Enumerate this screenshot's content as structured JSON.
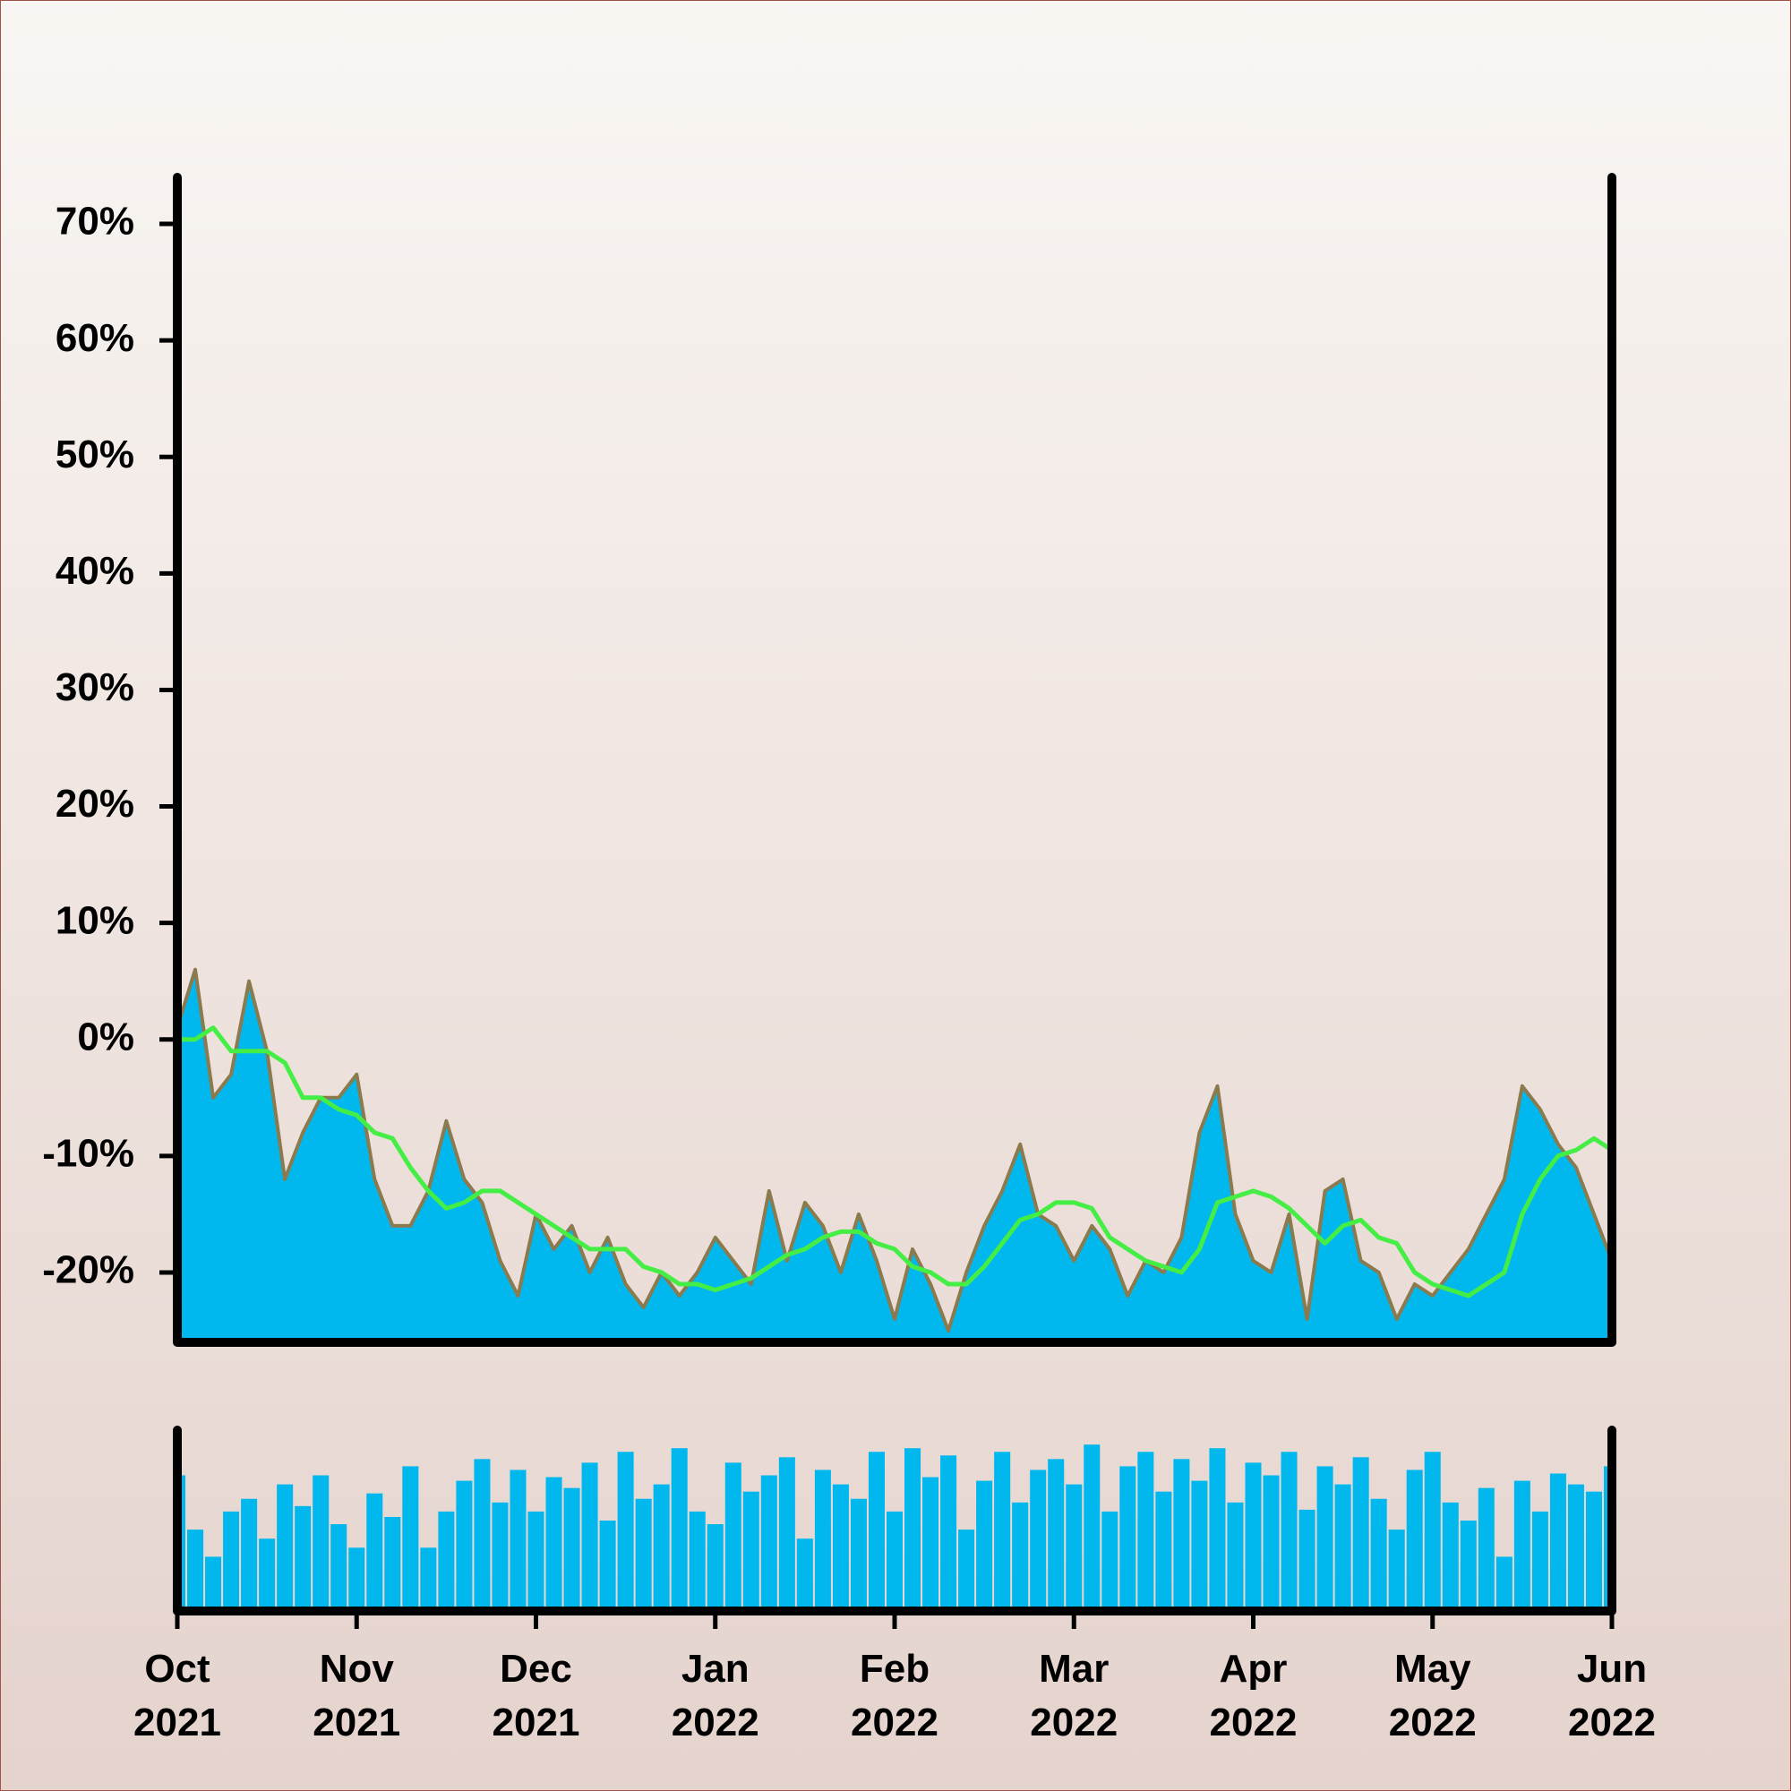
{
  "chart_data": [
    {
      "type": "area-line",
      "xlim": [
        0,
        8
      ],
      "ylim": [
        -26,
        74
      ],
      "yticks": [
        {
          "value": -20,
          "label": "-20%"
        },
        {
          "value": -10,
          "label": "-10%"
        },
        {
          "value": 0,
          "label": "0%"
        },
        {
          "value": 10,
          "label": "10%"
        },
        {
          "value": 20,
          "label": "20%"
        },
        {
          "value": 30,
          "label": "30%"
        },
        {
          "value": 40,
          "label": "40%"
        },
        {
          "value": 50,
          "label": "50%"
        },
        {
          "value": 60,
          "label": "60%"
        },
        {
          "value": 70,
          "label": "70%"
        }
      ],
      "series": [
        {
          "color": "#8b7a4e",
          "fill": "#00b8ee",
          "values": [
            1,
            6,
            -5,
            -3,
            5,
            -1,
            -12,
            -8,
            -5,
            -5,
            -3,
            -12,
            -16,
            -16,
            -13,
            -7,
            -12,
            -14,
            -19,
            -22,
            -15,
            -18,
            -16,
            -20,
            -17,
            -21,
            -23,
            -20,
            -22,
            -20,
            -17,
            -19,
            -21,
            -13,
            -19,
            -14,
            -16,
            -20,
            -15,
            -19,
            -24,
            -18,
            -21,
            -25,
            -20,
            -16,
            -13,
            -9,
            -15,
            -16,
            -19,
            -16,
            -18,
            -22,
            -19,
            -20,
            -17,
            -8,
            -4,
            -15,
            -19,
            -20,
            -15,
            -24,
            -13,
            -12,
            -19,
            -20,
            -24,
            -21,
            -22,
            -20,
            -18,
            -15,
            -12,
            -4,
            -6,
            -9,
            -11,
            -15,
            -19
          ]
        },
        {
          "color": "#44ee44",
          "values": [
            0,
            0,
            1,
            -1,
            -1,
            -1,
            -2,
            -5,
            -5,
            -6,
            -6.5,
            -8,
            -8.5,
            -11,
            -13,
            -14.5,
            -14,
            -13,
            -13,
            -14,
            -15,
            -16,
            -17,
            -18,
            -18,
            -18,
            -19.5,
            -20,
            -21,
            -21,
            -21.5,
            -21,
            -20.5,
            -19.5,
            -18.5,
            -18,
            -17,
            -16.5,
            -16.5,
            -17.5,
            -18,
            -19.5,
            -20,
            -21,
            -21,
            -19.5,
            -17.5,
            -15.5,
            -15,
            -14,
            -14,
            -14.5,
            -17,
            -18,
            -19,
            -19.5,
            -20,
            -18,
            -14,
            -13.5,
            -13,
            -13.5,
            -14.5,
            -16,
            -17.5,
            -16,
            -15.5,
            -17,
            -17.5,
            -20,
            -21,
            -21.5,
            -22,
            -21,
            -20,
            -15,
            -12,
            -10,
            -9.5,
            -8.5,
            -9.5
          ]
        }
      ]
    },
    {
      "type": "bar",
      "xlim": [
        0,
        8
      ],
      "ylim": [
        0,
        100
      ],
      "color": "#00b8ee",
      "xticks": [
        {
          "value": 0,
          "label": "Oct 2021"
        },
        {
          "value": 1,
          "label": "Nov 2021"
        },
        {
          "value": 2,
          "label": "Dec 2021"
        },
        {
          "value": 3,
          "label": "Jan 2022"
        },
        {
          "value": 4,
          "label": "Feb 2022"
        },
        {
          "value": 5,
          "label": "Mar 2022"
        },
        {
          "value": 6,
          "label": "Apr 2022"
        },
        {
          "value": 7,
          "label": "May 2022"
        },
        {
          "value": 8,
          "label": "Jun 2022"
        }
      ],
      "values": [
        75,
        45,
        30,
        55,
        62,
        40,
        70,
        58,
        75,
        48,
        35,
        65,
        52,
        80,
        35,
        55,
        72,
        84,
        60,
        78,
        55,
        74,
        68,
        82,
        50,
        88,
        62,
        70,
        90,
        55,
        48,
        82,
        66,
        75,
        85,
        40,
        78,
        70,
        62,
        88,
        55,
        90,
        74,
        86,
        45,
        72,
        88,
        60,
        78,
        84,
        70,
        92,
        55,
        80,
        88,
        66,
        84,
        72,
        90,
        60,
        82,
        75,
        88,
        56,
        80,
        70,
        85,
        62,
        45,
        78,
        88,
        60,
        50,
        68,
        30,
        72,
        55,
        76,
        70,
        66,
        80
      ]
    }
  ]
}
